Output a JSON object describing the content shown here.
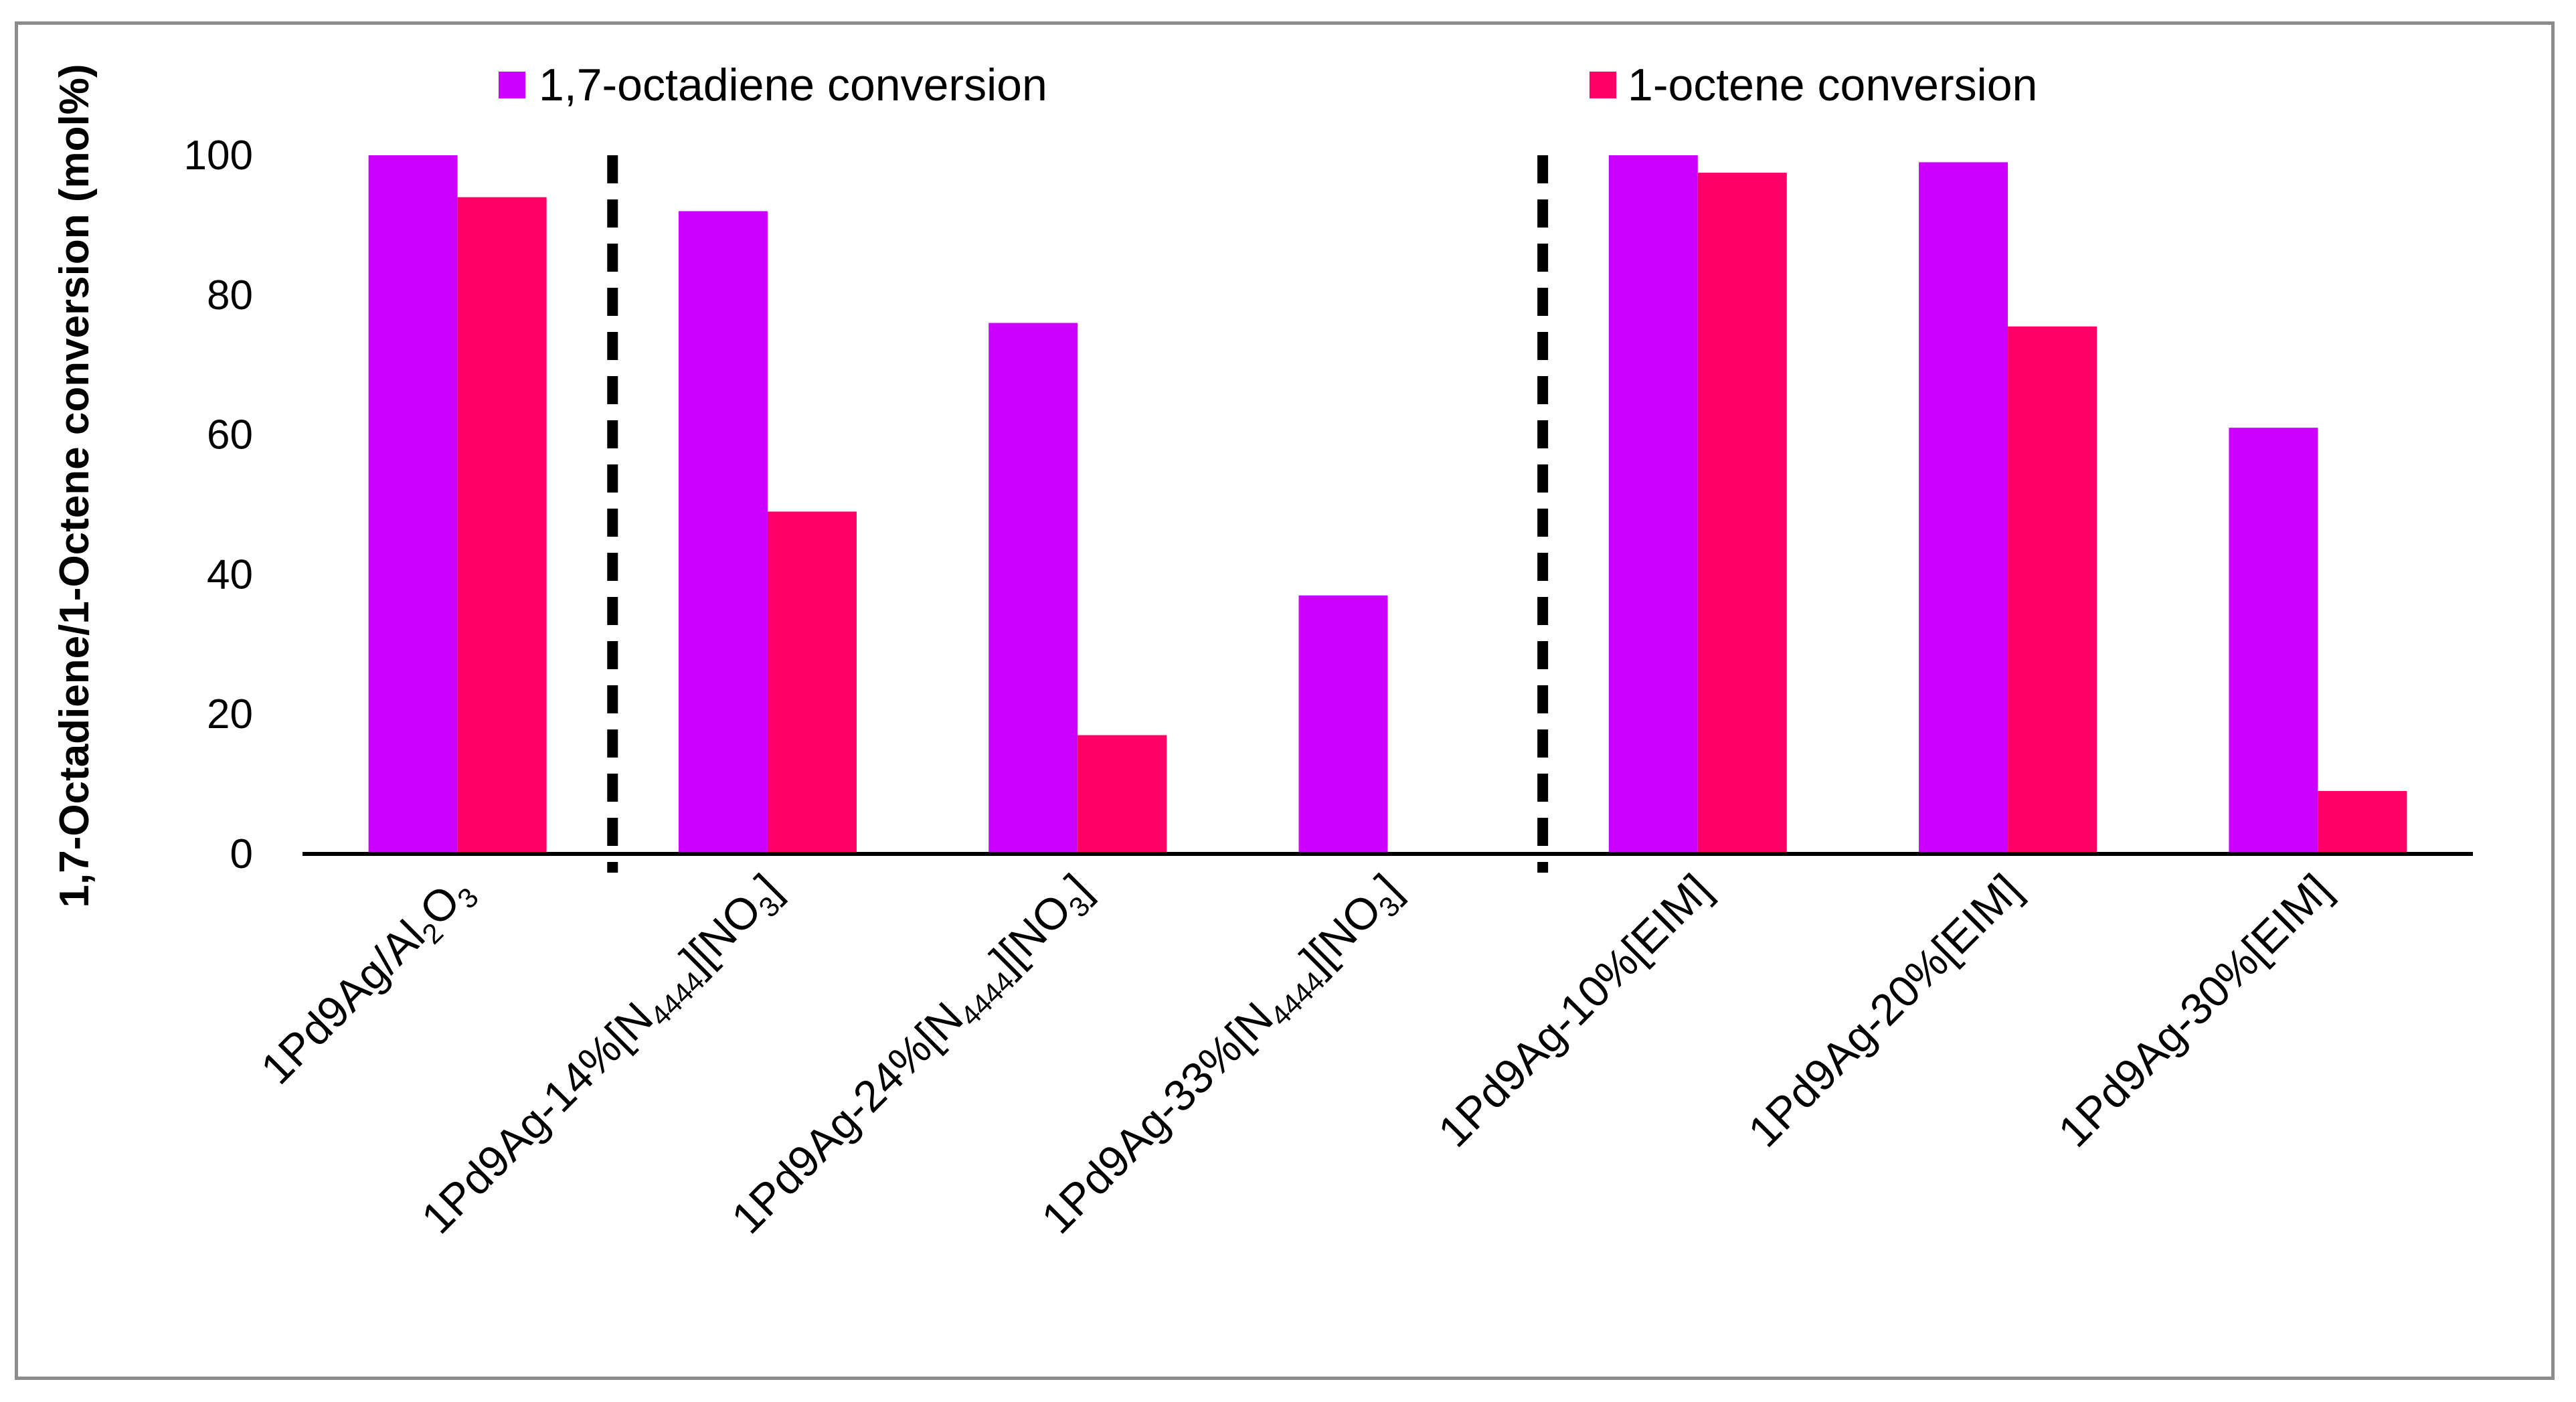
{
  "chart_data": {
    "type": "bar",
    "title": "",
    "xlabel": "",
    "ylabel": "1,7-Octadiene/1-Octene conversion (mol%)",
    "ylim": [
      0,
      100
    ],
    "yticks": [
      "0",
      "20",
      "40",
      "60",
      "80",
      "100"
    ],
    "grid": false,
    "legend_position": "top",
    "categories": [
      {
        "base": "1Pd9Ag/Al",
        "sub1": "2",
        "mid": "O",
        "sub2": "3",
        "tail": ""
      },
      {
        "base": "1Pd9Ag-14%[N",
        "sub1": "4444",
        "mid": "][NO",
        "sub2": "3",
        "tail": "]"
      },
      {
        "base": "1Pd9Ag-24%[N",
        "sub1": "4444",
        "mid": "][NO",
        "sub2": "3",
        "tail": "]"
      },
      {
        "base": "1Pd9Ag-33%[N",
        "sub1": "4444",
        "mid": "][NO",
        "sub2": "3",
        "tail": "]"
      },
      {
        "base": "1Pd9Ag-10%[EIM]",
        "sub1": "",
        "mid": "",
        "sub2": "",
        "tail": ""
      },
      {
        "base": "1Pd9Ag-20%[EIM]",
        "sub1": "",
        "mid": "",
        "sub2": "",
        "tail": ""
      },
      {
        "base": "1Pd9Ag-30%[EIM]",
        "sub1": "",
        "mid": "",
        "sub2": "",
        "tail": ""
      }
    ],
    "series": [
      {
        "name": "1,7-octadiene conversion",
        "color": "#cc00ff",
        "values": [
          100,
          92,
          76,
          37,
          100,
          99,
          61
        ]
      },
      {
        "name": "1-octene conversion",
        "color": "#ff0066",
        "values": [
          94,
          49,
          17,
          0,
          97.5,
          75.5,
          9
        ]
      }
    ],
    "separators_after_category": [
      0,
      3
    ]
  }
}
